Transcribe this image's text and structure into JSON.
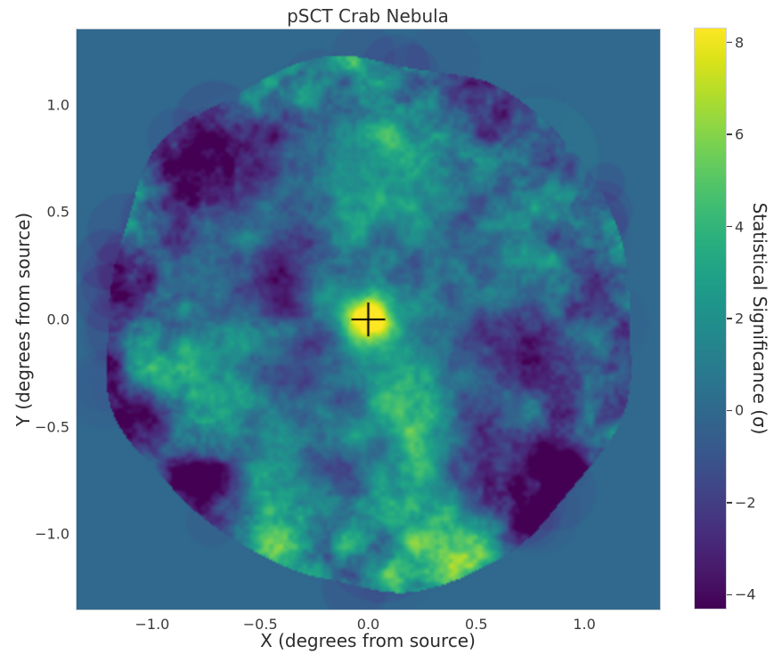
{
  "figure": {
    "title": "pSCT Crab Nebula"
  },
  "chart_data": {
    "type": "heatmap",
    "title": "pSCT Crab Nebula",
    "xlabel": "X (degrees from source)",
    "ylabel": "Y (degrees from source)",
    "xlim": [
      -1.35,
      1.35
    ],
    "ylim": [
      -1.35,
      1.35
    ],
    "grid": false,
    "xticks": {
      "values": [
        -1.0,
        -0.5,
        0.0,
        0.5,
        1.0
      ],
      "labels": [
        "−1.0",
        "−0.5",
        "0.0",
        "0.5",
        "1.0"
      ]
    },
    "yticks": {
      "values": [
        1.0,
        0.5,
        0.0,
        -0.5,
        -1.0
      ],
      "labels": [
        "1.0",
        "0.5",
        "0.0",
        "−0.5",
        "−1.0"
      ]
    },
    "colorbar": {
      "label": "Statistical Significance (σ)",
      "colormap": "viridis",
      "vmin": -4.3,
      "vmax": 8.3,
      "ticks": {
        "values": [
          8,
          6,
          4,
          2,
          0,
          -2,
          -4
        ],
        "labels": [
          "8",
          "6",
          "4",
          "2",
          "0",
          "−2",
          "−4"
        ]
      }
    },
    "field_of_view": {
      "center_deg": [
        0,
        0
      ],
      "radius_deg": 1.3,
      "edge_style": "scalloped rim of overlapping circular test regions"
    },
    "background_outside_fov_sigma": 0,
    "source_marker": {
      "symbol": "+",
      "x_deg": 0.0,
      "y_deg": 0.0,
      "color": "#000000",
      "size_deg": 0.16
    },
    "peak": {
      "x_deg": 0.0,
      "y_deg": 0.0,
      "significance_sigma": 8.3,
      "core_extent_deg": 0.1
    },
    "noise": {
      "fluctuation_range_sigma": [
        -4.3,
        4.0
      ],
      "description": "smooth correlated significance fluctuations (blobs ~0.1-0.4 deg) across the field; deepest negative patches near the rim reach the colormap minimum"
    }
  },
  "colors": {
    "figure_background": "#ffffff",
    "background_outside_fov": "#31688e",
    "text": "#2b2b2b",
    "spine": "#c9ced4",
    "marker": "#000000",
    "viridis_stops": [
      "#440154",
      "#481567",
      "#482677",
      "#453781",
      "#404788",
      "#39568C",
      "#33638D",
      "#2D708E",
      "#287D8E",
      "#238A8D",
      "#1F968B",
      "#20A387",
      "#29AF7F",
      "#3CBB75",
      "#55C667",
      "#73D055",
      "#95D840",
      "#B8DE29",
      "#DCE319",
      "#FDE725"
    ]
  }
}
